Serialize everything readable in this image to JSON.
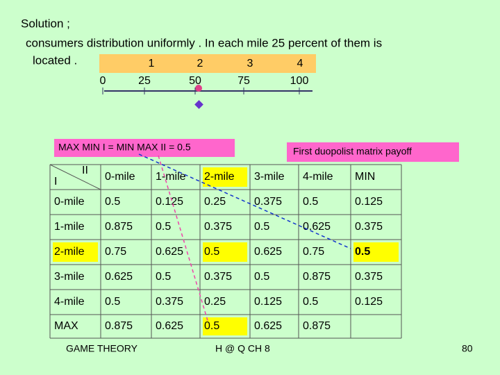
{
  "slide": {
    "intro": "Solution ;",
    "line1": "consumers distribution  uniformly . In each mile 25 percent of them is",
    "line2": "located .",
    "miles": [
      "1",
      "2",
      "3",
      "4"
    ],
    "positions": [
      "0",
      "25",
      "50",
      "75",
      "100"
    ],
    "maxmin_note": "MAX MIN  I = MIN MAX II  = 0.5",
    "matrix_title": "First duopolist matrix payoff",
    "table": {
      "corner_row": "I",
      "corner_col": "II",
      "columns": [
        "0-mile",
        "1-mile",
        "2-mile",
        "3-mile",
        "4-mile",
        "MIN"
      ],
      "rows": [
        [
          "0-mile",
          "0.5",
          "0.125",
          "0.25",
          "0.375",
          "0.5",
          "0.125"
        ],
        [
          "1-mile",
          "0.875",
          "0.5",
          "0.375",
          "0.5",
          "0.625",
          "0.375"
        ],
        [
          "2-mile",
          "0.75",
          "0.625",
          "0.5",
          "0.625",
          "0.75",
          "0.5"
        ],
        [
          "3-mile",
          "0.625",
          "0.5",
          "0.375",
          "0.5",
          "0.875",
          "0.375"
        ],
        [
          "4-mile",
          "0.5",
          "0.375",
          "0.25",
          "0.125",
          "0.5",
          "0.125"
        ],
        [
          "MAX",
          "0.875",
          "0.625",
          "0.5",
          "0.625",
          "0.875"
        ]
      ]
    },
    "footer": {
      "left": "GAME THEORY",
      "center": "H  @  Q   CH  8",
      "page": "80"
    }
  }
}
